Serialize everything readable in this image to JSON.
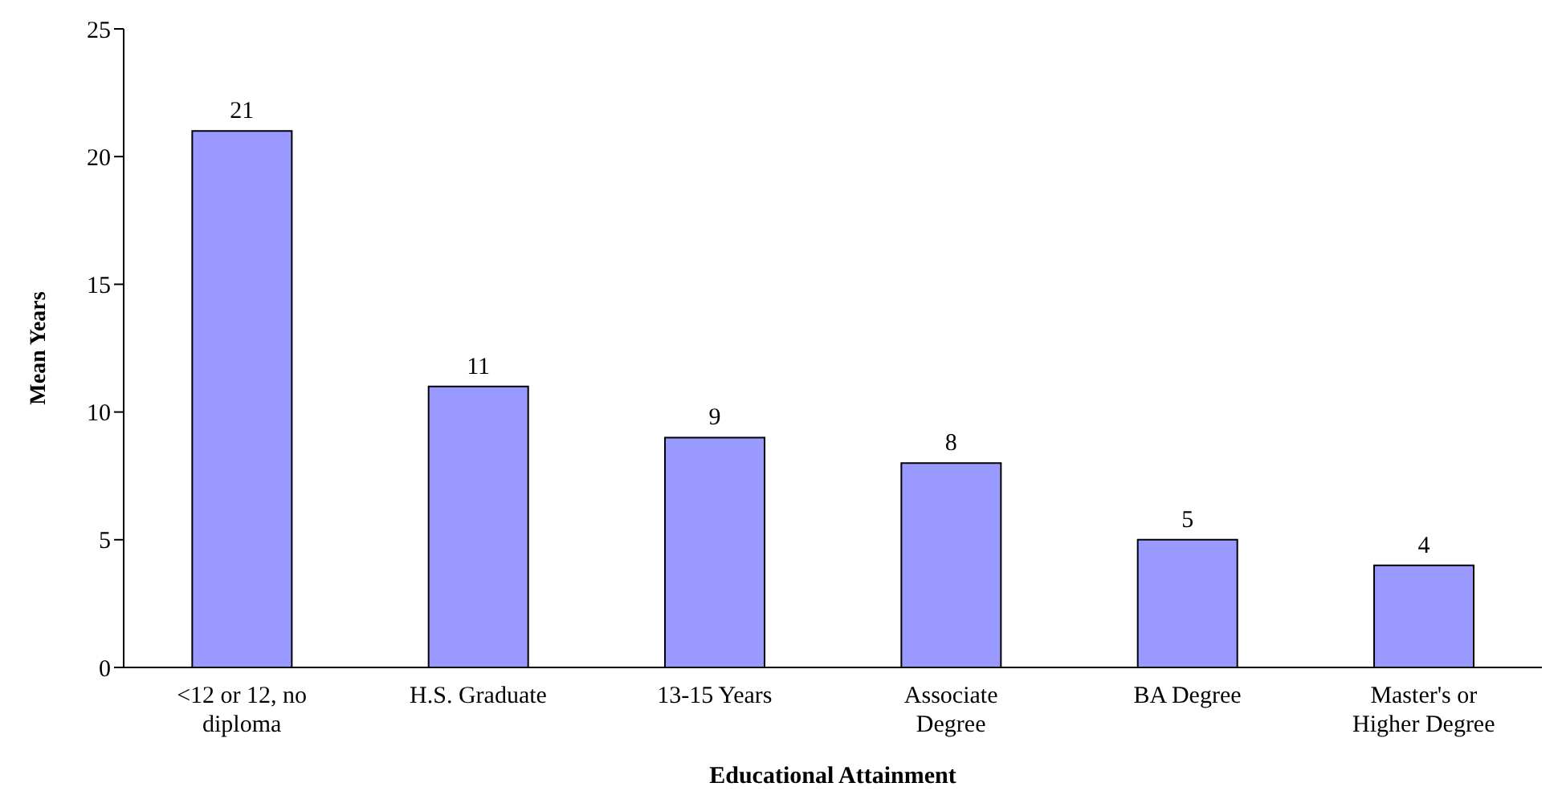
{
  "chart_data": {
    "type": "bar",
    "xlabel": "Educational Attainment",
    "ylabel": "Mean Years",
    "categories": [
      "<12 or 12, no diploma",
      "H.S. Graduate",
      "13-15 Years",
      "Associate Degree",
      "BA Degree",
      "Master's or Higher Degree"
    ],
    "values": [
      21,
      11,
      9,
      8,
      5,
      4
    ],
    "color": "#9999ff",
    "ylim": [
      0,
      25
    ],
    "yticks": [
      0,
      5,
      10,
      15,
      20,
      25
    ],
    "grid": false,
    "data_labels": true,
    "legend": false
  }
}
